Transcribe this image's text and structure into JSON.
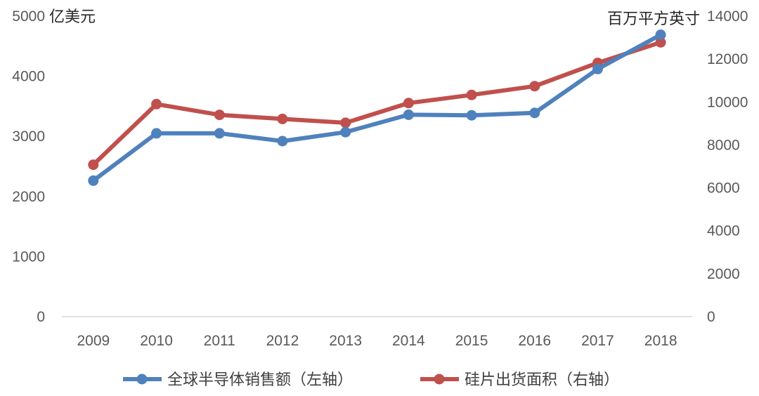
{
  "chart_data": {
    "type": "line",
    "x": [
      "2009",
      "2010",
      "2011",
      "2012",
      "2013",
      "2014",
      "2015",
      "2016",
      "2017",
      "2018"
    ],
    "left_axis": {
      "unit_label": "亿美元",
      "ylim": [
        0,
        5000
      ],
      "ticks": [
        0,
        1000,
        2000,
        3000,
        4000,
        5000
      ]
    },
    "right_axis": {
      "unit_label": "百万平方英寸",
      "ylim": [
        0,
        14000
      ],
      "ticks": [
        0,
        2000,
        4000,
        6000,
        8000,
        10000,
        12000,
        14000
      ]
    },
    "series": [
      {
        "name": "全球半导体销售额（左轴）",
        "axis": "left",
        "color": "#4F81BD",
        "values": [
          2263,
          3050,
          3050,
          2920,
          3070,
          3360,
          3350,
          3390,
          4120,
          4690
        ]
      },
      {
        "name": "硅片出货面积（右轴）",
        "axis": "right",
        "color": "#C0504D",
        "values": [
          7080,
          9900,
          9400,
          9210,
          9030,
          9950,
          10330,
          10740,
          11820,
          12780
        ]
      }
    ],
    "grid": false,
    "legend_position": "bottom"
  }
}
